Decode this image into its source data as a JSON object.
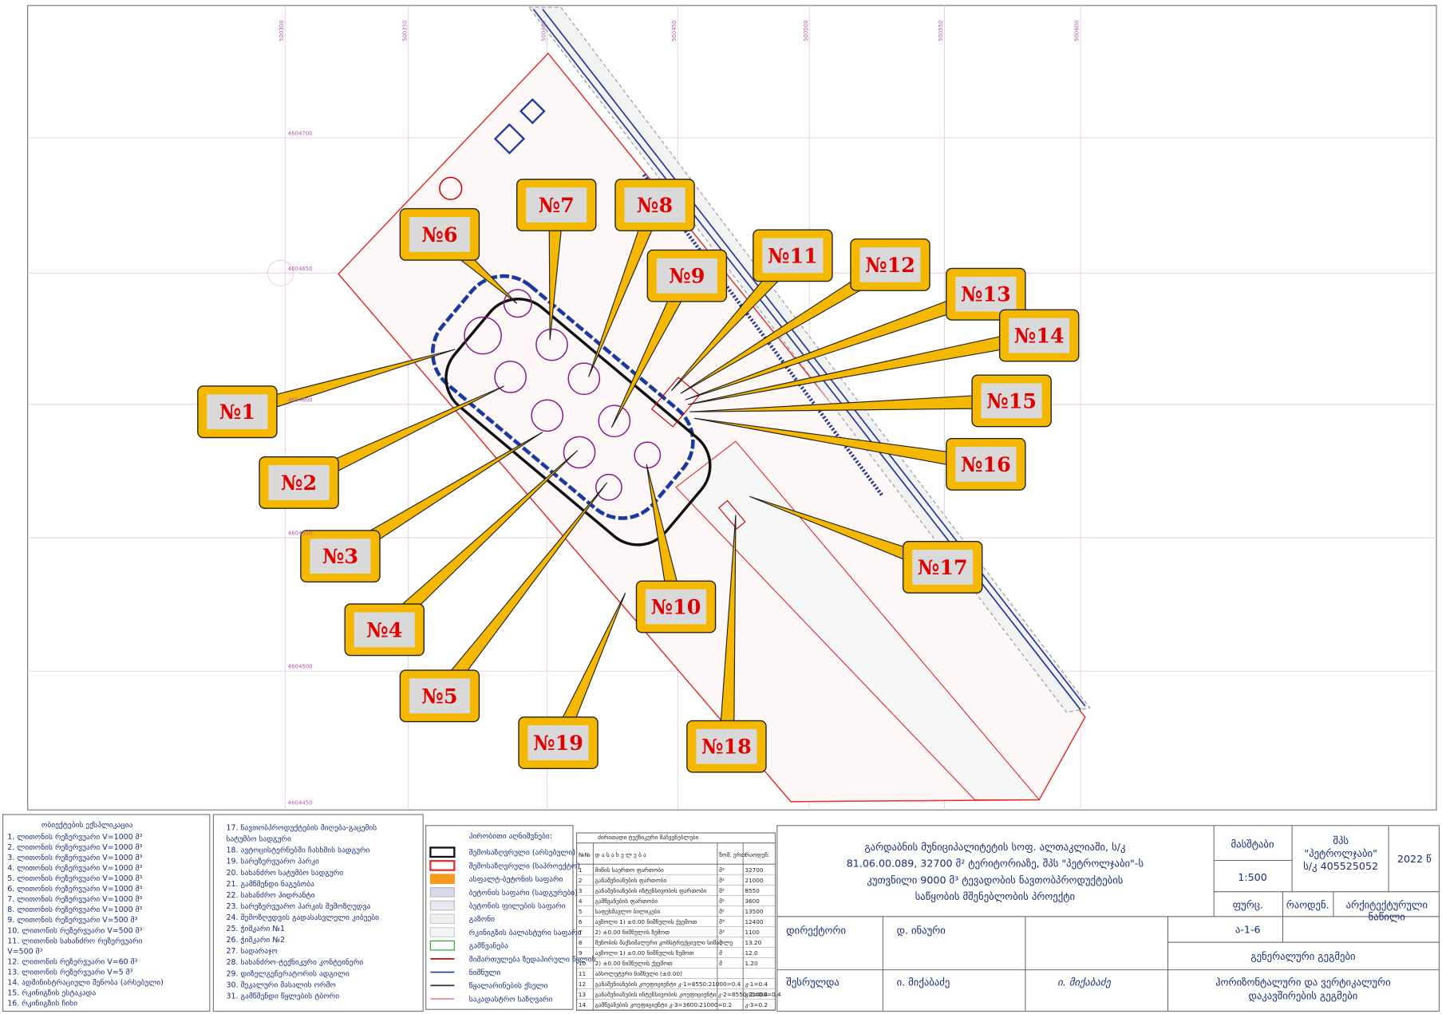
{
  "grid_labels": {
    "top": [
      "500300",
      "500350",
      "500400",
      "500450",
      "500500",
      "500550",
      "500600"
    ],
    "left": [
      "4604700",
      "4604650",
      "4604600",
      "4604550",
      "4604500",
      "4604450"
    ]
  },
  "callouts": [
    "№1",
    "№2",
    "№3",
    "№4",
    "№5",
    "№6",
    "№7",
    "№8",
    "№9",
    "№10",
    "№11",
    "№12",
    "№13",
    "№14",
    "№15",
    "№16",
    "№17",
    "№18",
    "№19"
  ],
  "legend_objects": {
    "title": "ობიექტების ექსპლიკაცია",
    "items": [
      "1. ლითონის რეზერვუარი V=1000 მ³",
      "2. ლითონის რეზერვუარი V=1000 მ³",
      "3. ლითონის რეზერვუარი V=1000 მ³",
      "4. ლითონის რეზერვუარი V=1000 მ³",
      "5. ლითონის რეზერვუარი V=1000 მ³",
      "6. ლითონის რეზერვუარი V=1000 მ³",
      "7. ლითონის რეზერვუარი V=1000 მ³",
      "8. ლითონის რეზერვუარი V=1000 მ³",
      "9. ლითონის რეზერვუარი V=500 მ³",
      "10. ლითონის რეზერვუარი V=500 მ³",
      "11. ლითონის სახანძრო რეზერვუარი",
      "V=500 მ³",
      "12. ლითონის რეზერვუარი V=60 მ³",
      "13. ლითონის რეზერვუარი V=5 მ³",
      "14. ადმინისტრაციული შენობა (არსებული)",
      "15. რკინიგზის ესტაკადა",
      "16. რკინიგზის ჩიხი"
    ]
  },
  "legend_objects_2": {
    "items": [
      "17. ნავთობპროდუქტების მიღება-გაცემის",
      "სატუმბო სადგური",
      "18. ავტოცისტერნებში ჩასხმის სადგური",
      "19. სარეზერვუარო პარკი",
      "20. სახანძრო სატუმბო სადგური",
      "21. გამწმენდი ნაგებობა",
      "22. სახანძრო ჰიდრანტი",
      "23. სარეზერვუარო პარკის შემოზღუდვა",
      "24. შემოზღუდვის გადასასვლელი კიბეები",
      "25. ჭიშკარი №1",
      "26. ჭიშკარი №2",
      "27. სადარაჯო",
      "28. სახანძრო-ტექნიკური კონტეინერი",
      "29. დიზელგენერატორის ადგილი",
      "30. შეკალური მასალის ორმო",
      "31. გამწმენდი წყლების ტბორი"
    ]
  },
  "legend_symbols": {
    "title": "პირობითი აღნიშვნები:",
    "items": [
      "შემოსაზღვრული (არსებული)",
      "შემოსაზღვრული (საპროექტო)",
      "ასფალტ-ბეტონის საფარი",
      "ბეტონის საფარი (სადგურები)",
      "ბეტონის ფილების საფარი",
      "გაზონი",
      "რკინიგზის ბალასტური საფარი",
      "გამწვანება",
      "მიმართულება ზედაპირული წყლის",
      "ნიშნული",
      "წყალარინების ქსელი",
      "საკადასტრო საზღვარი"
    ]
  },
  "tech_table": {
    "title": "ძირითადი ტექნიკური მაჩვენებლები",
    "headers": [
      "№№",
      "დ ა ს ა ხ ე ლ ე ბ ა",
      "ზომ. ერთ.",
      "რაოდენ."
    ],
    "rows": [
      [
        "1",
        "მიწის საერთო ფართობი",
        "მ²",
        "32700"
      ],
      [
        "2",
        "განაშენიანების ფართობი",
        "მ²",
        "21000"
      ],
      [
        "3",
        "განაშენიანების ინტენსივობის ფართობი",
        "მ²",
        "8550"
      ],
      [
        "4",
        "გამწვანების ფართობი",
        "მ²",
        "3600"
      ],
      [
        "5",
        "საფეხმავლო ბილიკები",
        "მ²",
        "13500"
      ],
      [
        "6",
        "ავზოლი 1) ±0.00 ნიშნულის ქვემოთ",
        "მ³",
        "12400"
      ],
      [
        "7",
        "2) ±0.00 ნიშნულის ზემოთ",
        "მ³",
        "1100"
      ],
      [
        "8",
        "შენობის მაქსიმალური კონსტრუქციული სიმაღლე",
        "მ",
        "13.20"
      ],
      [
        "9",
        "ავზოლი 1) ±0.00 ნიშნულის ზემოთ",
        "მ",
        "12.0"
      ],
      [
        "10",
        "2) ±0.00 ნიშნულის ქვემოთ",
        "მ",
        "1.20"
      ],
      [
        "11",
        "აბსოლუტური ნიშნული (±0.00)",
        "",
        ""
      ],
      [
        "12",
        "განაშენიანების კოეფიციენტი კ-1=8550:21000=0.4",
        "",
        "კ-1=0.4"
      ],
      [
        "13",
        "განაშენიანების ინტენსივობის კოეფიციენტი კ-2=8550:21000=0.4",
        "",
        "კ-2=0.4"
      ],
      [
        "14",
        "გამწვანების კოეფიციენტი კ-3=3600:21000=0.2",
        "",
        "კ-3=0.2"
      ]
    ]
  },
  "title_block": {
    "project": [
      "გარდაბნის მუნიციპალიტეტის სოფ. ალთაკლიაში, ს/კ",
      "81.06.00.089, 32700 მ² ტერიტორიაზე, შპს \"პეტროლჯაბი\"-ს",
      "კუთვნილი 9000 მ³ ტევადობის ნავთობპროდუქტების",
      "საწყობის მშენებლობის პროექტი"
    ],
    "scale_label": "მასშტაბი",
    "scale": "1:500",
    "client": [
      "შპს",
      "\"პეტროლჯაბი\"",
      "ს/კ 405525052"
    ],
    "year": "2022 წ",
    "sheet_label": "ფურც.",
    "count_label": "რაოდენ.",
    "part": [
      "არქიტექტურული",
      "ნაწილი"
    ],
    "sheet": "ა-1-6",
    "director_label": "დირექტორი",
    "director": "დ. ინაური",
    "plan_title": "გენერალური გეგმები",
    "done_label": "შესრულდა",
    "done_by": "ი. მიქაბაძე",
    "signature": "ი. მიქაბაძე",
    "plan_subtitle": [
      "ჰორიზონტალური და ვერტიკალური",
      "დაკავშირების გეგმები"
    ]
  }
}
